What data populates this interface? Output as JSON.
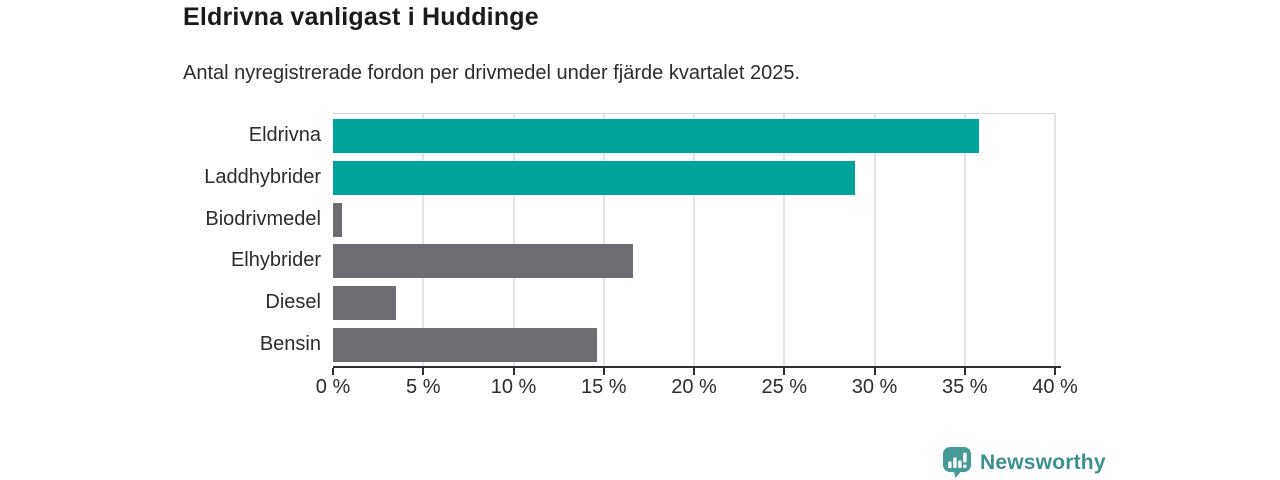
{
  "header": {
    "title": "Eldrivna vanligast i Huddinge",
    "subtitle": "Antal nyregistrerade fordon per drivmedel under fjärde kvartalet 2025."
  },
  "chart_data": {
    "type": "bar",
    "orientation": "horizontal",
    "title": "Eldrivna vanligast i Huddinge",
    "subtitle": "Antal nyregistrerade fordon per drivmedel under fjärde kvartalet 2025.",
    "categories": [
      "Eldrivna",
      "Laddhybrider",
      "Biodrivmedel",
      "Elhybrider",
      "Diesel",
      "Bensin"
    ],
    "values": [
      35.8,
      28.9,
      0.5,
      16.6,
      3.5,
      14.6
    ],
    "unit": "%",
    "xlabel": "",
    "ylabel": "",
    "xlim": [
      0,
      40
    ],
    "x_ticks": [
      0,
      5,
      10,
      15,
      20,
      25,
      30,
      35,
      40
    ],
    "x_tick_labels": [
      "0 %",
      "5 %",
      "10 %",
      "15 %",
      "20 %",
      "25 %",
      "30 %",
      "35 %",
      "40 %"
    ],
    "bar_colors": [
      "#00a49c",
      "#00a49c",
      "#6e6d73",
      "#6e6d73",
      "#6e6d73",
      "#6e6d73"
    ],
    "highlight_color": "#00a49c",
    "default_color": "#6e6d73",
    "grid": true,
    "gridline_color": "#e4e4e4",
    "axis_color": "#2f2f2f",
    "legend": "none"
  },
  "branding": {
    "logo_text": "Newsworthy",
    "logo_text_color": "#3b918d",
    "icon_color": "#479b97",
    "icon_name": "newsworthy-chart-bubble-icon"
  }
}
